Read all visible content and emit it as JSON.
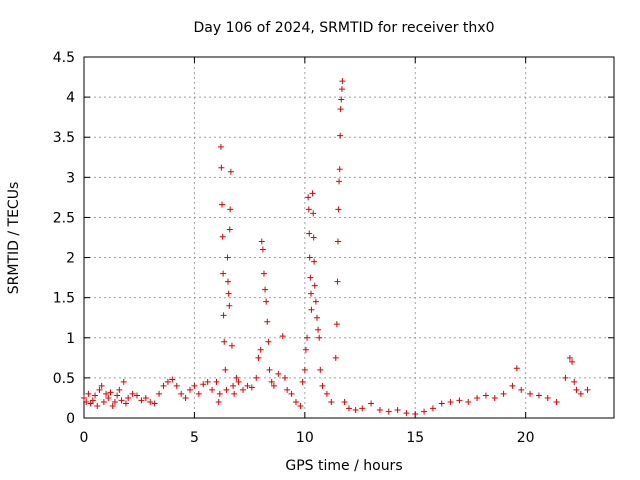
{
  "chart_data": {
    "type": "scatter",
    "title": "Day 106 of 2024, SRMTID for receiver thx0",
    "xlabel": "GPS time / hours",
    "ylabel": "SRMTID / TECUs",
    "xlim": [
      0,
      24
    ],
    "ylim": [
      0,
      4.5
    ],
    "xticks": [
      0,
      5,
      10,
      15,
      20
    ],
    "xtick_labels": [
      "0",
      "5",
      "10",
      "15",
      "20"
    ],
    "yticks": [
      0,
      0.5,
      1,
      1.5,
      2,
      2.5,
      3,
      3.5,
      4,
      4.5
    ],
    "ytick_labels": [
      "0",
      "0.5",
      "1",
      "1.5",
      "2",
      "2.5",
      "3",
      "3.5",
      "4",
      "4.5"
    ],
    "grid": true,
    "marker": "+",
    "color": "#e00000",
    "series": [
      {
        "name": "thx0",
        "points": [
          [
            0.0,
            0.25
          ],
          [
            0.1,
            0.2
          ],
          [
            0.2,
            0.3
          ],
          [
            0.3,
            0.18
          ],
          [
            0.4,
            0.22
          ],
          [
            0.5,
            0.28
          ],
          [
            0.6,
            0.15
          ],
          [
            0.7,
            0.35
          ],
          [
            0.8,
            0.4
          ],
          [
            0.9,
            0.2
          ],
          [
            1.0,
            0.3
          ],
          [
            1.1,
            0.25
          ],
          [
            1.2,
            0.32
          ],
          [
            1.3,
            0.15
          ],
          [
            1.4,
            0.2
          ],
          [
            1.5,
            0.28
          ],
          [
            1.6,
            0.35
          ],
          [
            1.7,
            0.22
          ],
          [
            1.8,
            0.45
          ],
          [
            1.9,
            0.18
          ],
          [
            2.0,
            0.25
          ],
          [
            2.2,
            0.3
          ],
          [
            2.4,
            0.28
          ],
          [
            2.6,
            0.22
          ],
          [
            2.8,
            0.25
          ],
          [
            3.0,
            0.2
          ],
          [
            3.2,
            0.18
          ],
          [
            3.4,
            0.3
          ],
          [
            3.6,
            0.4
          ],
          [
            3.8,
            0.45
          ],
          [
            4.0,
            0.48
          ],
          [
            4.2,
            0.4
          ],
          [
            4.4,
            0.3
          ],
          [
            4.6,
            0.25
          ],
          [
            4.8,
            0.35
          ],
          [
            5.0,
            0.4
          ],
          [
            5.2,
            0.3
          ],
          [
            5.4,
            0.42
          ],
          [
            5.6,
            0.45
          ],
          [
            5.8,
            0.35
          ],
          [
            6.0,
            0.45
          ],
          [
            6.1,
            0.2
          ],
          [
            6.15,
            0.3
          ],
          [
            6.2,
            3.38
          ],
          [
            6.22,
            3.12
          ],
          [
            6.25,
            2.66
          ],
          [
            6.28,
            2.26
          ],
          [
            6.3,
            1.8
          ],
          [
            6.32,
            1.28
          ],
          [
            6.35,
            0.95
          ],
          [
            6.4,
            0.6
          ],
          [
            6.45,
            0.35
          ],
          [
            6.5,
            2.0
          ],
          [
            6.52,
            1.7
          ],
          [
            6.55,
            1.55
          ],
          [
            6.58,
            1.4
          ],
          [
            6.6,
            2.35
          ],
          [
            6.62,
            2.6
          ],
          [
            6.65,
            3.07
          ],
          [
            6.7,
            0.9
          ],
          [
            6.75,
            0.4
          ],
          [
            6.8,
            0.3
          ],
          [
            6.9,
            0.5
          ],
          [
            7.0,
            0.45
          ],
          [
            7.2,
            0.35
          ],
          [
            7.4,
            0.4
          ],
          [
            7.6,
            0.38
          ],
          [
            7.8,
            0.5
          ],
          [
            7.9,
            0.75
          ],
          [
            8.0,
            0.85
          ],
          [
            8.05,
            2.2
          ],
          [
            8.1,
            2.1
          ],
          [
            8.15,
            1.8
          ],
          [
            8.2,
            1.6
          ],
          [
            8.25,
            1.45
          ],
          [
            8.3,
            1.2
          ],
          [
            8.35,
            0.95
          ],
          [
            8.4,
            0.6
          ],
          [
            8.5,
            0.45
          ],
          [
            8.6,
            0.4
          ],
          [
            8.8,
            0.55
          ],
          [
            9.0,
            1.02
          ],
          [
            9.1,
            0.5
          ],
          [
            9.2,
            0.35
          ],
          [
            9.4,
            0.3
          ],
          [
            9.6,
            0.2
          ],
          [
            9.8,
            0.15
          ],
          [
            9.9,
            0.45
          ],
          [
            10.0,
            0.6
          ],
          [
            10.05,
            0.85
          ],
          [
            10.1,
            1.0
          ],
          [
            10.15,
            2.75
          ],
          [
            10.18,
            2.6
          ],
          [
            10.2,
            2.3
          ],
          [
            10.22,
            2.0
          ],
          [
            10.25,
            1.75
          ],
          [
            10.28,
            1.55
          ],
          [
            10.3,
            1.35
          ],
          [
            10.35,
            2.8
          ],
          [
            10.38,
            2.55
          ],
          [
            10.4,
            2.25
          ],
          [
            10.42,
            1.95
          ],
          [
            10.45,
            1.65
          ],
          [
            10.5,
            1.45
          ],
          [
            10.55,
            1.25
          ],
          [
            10.6,
            1.1
          ],
          [
            10.65,
            1.0
          ],
          [
            10.7,
            0.6
          ],
          [
            10.8,
            0.4
          ],
          [
            11.0,
            0.3
          ],
          [
            11.2,
            0.2
          ],
          [
            11.4,
            0.75
          ],
          [
            11.45,
            1.17
          ],
          [
            11.48,
            1.7
          ],
          [
            11.5,
            2.2
          ],
          [
            11.52,
            2.6
          ],
          [
            11.55,
            2.95
          ],
          [
            11.58,
            3.1
          ],
          [
            11.6,
            3.52
          ],
          [
            11.62,
            3.85
          ],
          [
            11.65,
            3.97
          ],
          [
            11.68,
            4.1
          ],
          [
            11.7,
            4.2
          ],
          [
            11.8,
            0.2
          ],
          [
            12.0,
            0.12
          ],
          [
            12.3,
            0.1
          ],
          [
            12.6,
            0.12
          ],
          [
            13.0,
            0.18
          ],
          [
            13.4,
            0.1
          ],
          [
            13.8,
            0.08
          ],
          [
            14.2,
            0.1
          ],
          [
            14.6,
            0.06
          ],
          [
            15.0,
            0.05
          ],
          [
            15.4,
            0.08
          ],
          [
            15.8,
            0.12
          ],
          [
            16.2,
            0.18
          ],
          [
            16.6,
            0.2
          ],
          [
            17.0,
            0.22
          ],
          [
            17.4,
            0.2
          ],
          [
            17.8,
            0.25
          ],
          [
            18.2,
            0.28
          ],
          [
            18.6,
            0.25
          ],
          [
            19.0,
            0.3
          ],
          [
            19.4,
            0.4
          ],
          [
            19.6,
            0.62
          ],
          [
            19.8,
            0.35
          ],
          [
            20.2,
            0.3
          ],
          [
            20.6,
            0.28
          ],
          [
            21.0,
            0.25
          ],
          [
            21.4,
            0.2
          ],
          [
            21.8,
            0.5
          ],
          [
            22.0,
            0.75
          ],
          [
            22.1,
            0.7
          ],
          [
            22.2,
            0.45
          ],
          [
            22.3,
            0.35
          ],
          [
            22.5,
            0.3
          ],
          [
            22.8,
            0.35
          ]
        ]
      }
    ]
  }
}
